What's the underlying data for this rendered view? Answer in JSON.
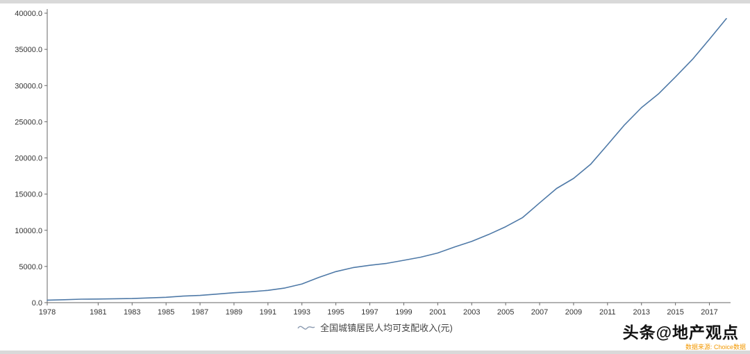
{
  "chart_data": {
    "type": "line",
    "title": "",
    "xlabel": "",
    "ylabel": "",
    "legend_position": "bottom",
    "grid": false,
    "line_color": "#4e79a7",
    "axis_color": "#666666",
    "ylim": [
      0,
      40000
    ],
    "y_ticks": [
      0,
      5000,
      10000,
      15000,
      20000,
      25000,
      30000,
      35000,
      40000
    ],
    "y_tick_labels": [
      "0.0",
      "5000.0",
      "10000.0",
      "15000.0",
      "20000.0",
      "25000.0",
      "30000.0",
      "35000.0",
      "40000.0"
    ],
    "x_ticks": [
      1978,
      1981,
      1983,
      1985,
      1987,
      1989,
      1991,
      1993,
      1995,
      1997,
      1999,
      2001,
      2003,
      2005,
      2007,
      2009,
      2011,
      2013,
      2015,
      2017
    ],
    "x_tick_labels": [
      "1978",
      "1981",
      "1983",
      "1985",
      "1987",
      "1989",
      "1991",
      "1993",
      "1995",
      "1997",
      "1999",
      "2001",
      "2003",
      "2005",
      "2007",
      "2009",
      "2011",
      "2013",
      "2015",
      "2017"
    ],
    "series": [
      {
        "name": "全国城镇居民人均可支配收入(元)",
        "x": [
          1978,
          1979,
          1980,
          1981,
          1982,
          1983,
          1984,
          1985,
          1986,
          1987,
          1988,
          1989,
          1990,
          1991,
          1992,
          1993,
          1994,
          1995,
          1996,
          1997,
          1998,
          1999,
          2000,
          2001,
          2002,
          2003,
          2004,
          2005,
          2006,
          2007,
          2008,
          2009,
          2010,
          2011,
          2012,
          2013,
          2014,
          2015,
          2016,
          2017,
          2018
        ],
        "values": [
          343.4,
          405.0,
          477.6,
          500.4,
          535.3,
          564.6,
          652.1,
          739.1,
          899.6,
          1002.2,
          1181.4,
          1375.7,
          1510.2,
          1700.6,
          2026.6,
          2577.4,
          3496.2,
          4283.0,
          4838.9,
          5160.3,
          5425.1,
          5854.0,
          6280.0,
          6859.6,
          7702.8,
          8472.2,
          9421.6,
          10493.0,
          11759.5,
          13785.8,
          15780.8,
          17174.7,
          19109.4,
          21809.8,
          24564.7,
          26955.1,
          28843.9,
          31194.8,
          33616.2,
          36396.2,
          39250.8
        ]
      }
    ]
  },
  "legend": {
    "label": "全国城镇居民人均可支配收入(元)"
  },
  "attribution": {
    "text": "头条@地产观点"
  },
  "source": {
    "text": "数据来源: Choice数据"
  }
}
